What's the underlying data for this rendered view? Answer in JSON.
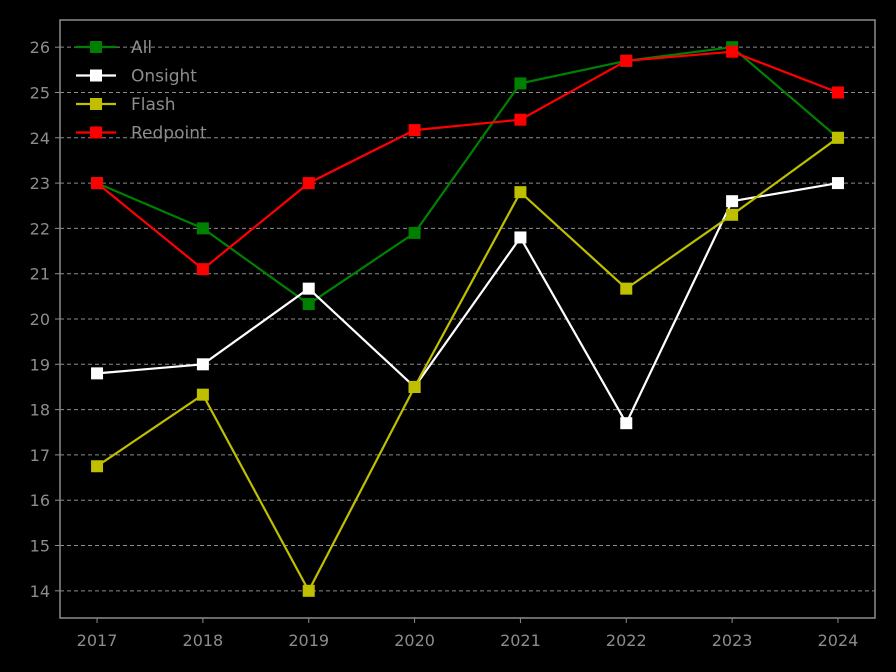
{
  "chart_data": {
    "type": "line",
    "title": "",
    "xlabel": "",
    "ylabel": "",
    "x": [
      2017,
      2018,
      2019,
      2020,
      2021,
      2022,
      2023,
      2024
    ],
    "x_tick_labels": [
      "2017",
      "2018",
      "2019",
      "2020",
      "2021",
      "2022",
      "2023",
      "2024"
    ],
    "y_ticks": [
      14,
      15,
      16,
      17,
      18,
      19,
      20,
      21,
      22,
      23,
      24,
      25,
      26
    ],
    "y_tick_labels": [
      "14",
      "15",
      "16",
      "17",
      "18",
      "19",
      "20",
      "21",
      "22",
      "23",
      "24",
      "25",
      "26"
    ],
    "xlim": [
      2016.65,
      2024.35
    ],
    "ylim": [
      13.4,
      26.6
    ],
    "grid": "horizontal dashed",
    "legend_position": "top-left",
    "background": "#000000",
    "frame_color": "#8c8c8c",
    "grid_color": "#8c8c8c",
    "marker": "square",
    "series": [
      {
        "name": "All",
        "color": "#008000",
        "values": [
          23,
          22,
          20.33,
          21.9,
          25.2,
          25.7,
          26,
          24
        ]
      },
      {
        "name": "Onsight",
        "color": "#ffffff",
        "values": [
          18.8,
          19,
          20.67,
          18.5,
          21.8,
          17.7,
          22.6,
          23
        ]
      },
      {
        "name": "Flash",
        "color": "#bfbf00",
        "values": [
          16.75,
          18.33,
          14,
          18.5,
          22.8,
          20.67,
          22.3,
          24
        ]
      },
      {
        "name": "Redpoint",
        "color": "#ff0000",
        "values": [
          23,
          21.1,
          23,
          24.17,
          24.4,
          25.7,
          25.9,
          25
        ]
      }
    ]
  }
}
